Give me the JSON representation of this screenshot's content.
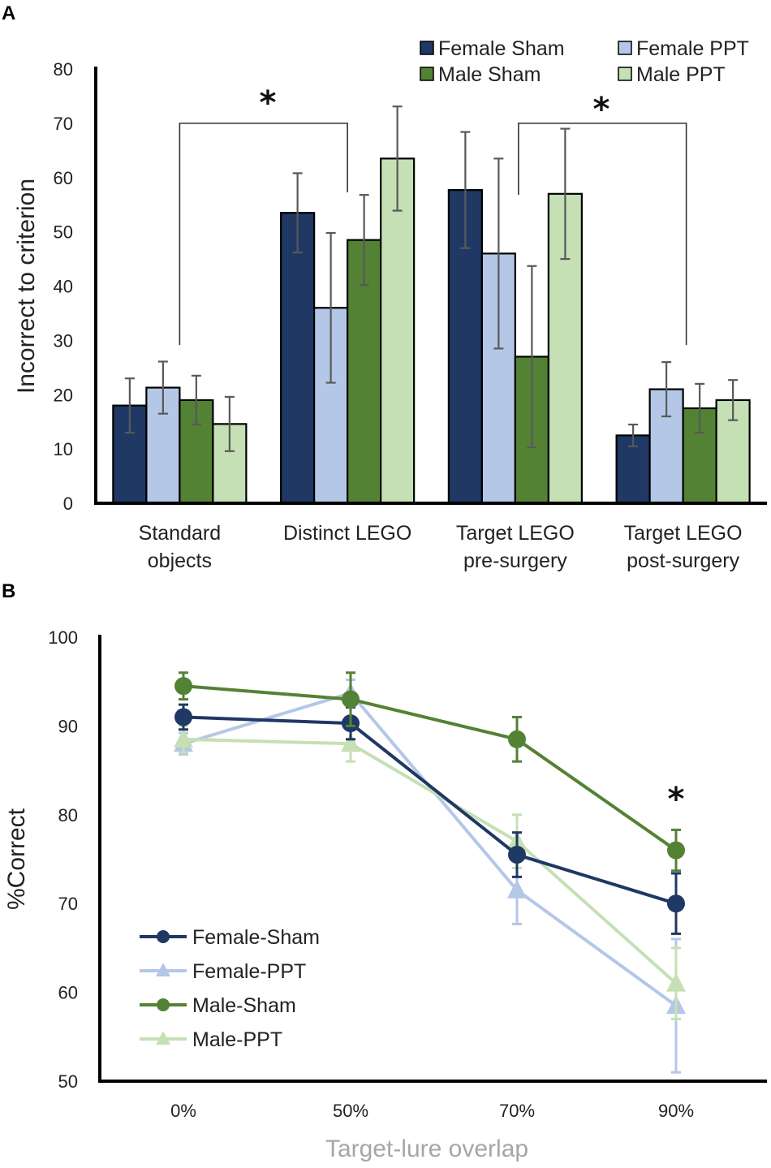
{
  "colors": {
    "female_sham": "#1f3864",
    "female_ppt": "#b4c7e7",
    "male_sham": "#548235",
    "male_ppt": "#c5e0b4",
    "error_bar": "#595959",
    "axis": "#000000",
    "xlabel_b": "#a6a6a6"
  },
  "chart_data": [
    {
      "panel": "A",
      "type": "bar",
      "ylabel": "Incorrect to criterion",
      "xlabel": "",
      "ylim": [
        0,
        80
      ],
      "yticks": [
        "0",
        "10",
        "20",
        "30",
        "40",
        "50",
        "60",
        "70",
        "80"
      ],
      "categories": [
        [
          "Standard",
          "objects"
        ],
        [
          "Distinct LEGO"
        ],
        [
          "Target LEGO",
          "pre-surgery"
        ],
        [
          "Target LEGO",
          "post-surgery"
        ]
      ],
      "series": [
        {
          "name": "Female Sham",
          "color_key": "female_sham",
          "values": [
            18,
            53.5,
            57.7,
            12.5
          ],
          "errors": [
            5,
            7.3,
            10.7,
            2
          ]
        },
        {
          "name": "Female PPT",
          "color_key": "female_ppt",
          "values": [
            21.3,
            36,
            46,
            21
          ],
          "errors": [
            4.8,
            13.8,
            17.5,
            5
          ]
        },
        {
          "name": "Male Sham",
          "color_key": "male_sham",
          "values": [
            19,
            48.5,
            27,
            17.5
          ],
          "errors": [
            4.5,
            8.3,
            16.7,
            4.5
          ]
        },
        {
          "name": "Male PPT",
          "color_key": "male_ppt",
          "values": [
            14.6,
            63.5,
            57,
            19
          ],
          "errors": [
            5,
            9.6,
            12,
            3.7
          ]
        }
      ],
      "significance": [
        {
          "label": "*",
          "from_category": 0,
          "to_category": 1,
          "bracket_y": 70
        },
        {
          "label": "*",
          "from_category": 2,
          "to_category": 3,
          "bracket_y": 70
        }
      ],
      "legend_position": "top-right"
    },
    {
      "panel": "B",
      "type": "line",
      "ylabel": "%Correct",
      "xlabel": "Target-lure  overlap",
      "ylim": [
        50,
        100
      ],
      "yticks": [
        "50",
        "60",
        "70",
        "80",
        "90",
        "100"
      ],
      "categories": [
        "0%",
        "50%",
        "70%",
        "90%"
      ],
      "series": [
        {
          "name": "Female-Sham",
          "marker": "circle",
          "color_key": "female_sham",
          "values": [
            91,
            90.3,
            75.5,
            70
          ],
          "errors": [
            1.4,
            1.8,
            2.5,
            3.4
          ]
        },
        {
          "name": "Female-PPT",
          "marker": "triangle",
          "color_key": "female_ppt",
          "values": [
            88,
            93.7,
            71.5,
            58.5
          ],
          "errors": [
            1.2,
            1.5,
            3.8,
            7.5
          ]
        },
        {
          "name": "Male-Sham",
          "marker": "circle",
          "color_key": "male_sham",
          "values": [
            94.5,
            93,
            88.5,
            76
          ],
          "errors": [
            1.5,
            3,
            2.5,
            2.3
          ]
        },
        {
          "name": "Male-PPT",
          "marker": "triangle",
          "color_key": "male_ppt",
          "values": [
            88.5,
            88,
            77,
            61
          ],
          "errors": [
            1.5,
            2,
            3,
            4
          ]
        }
      ],
      "significance": [
        {
          "label": "*",
          "category": 3,
          "y": 80
        }
      ],
      "legend_position": "bottom-left"
    }
  ],
  "labels": {
    "panel_a": "A",
    "panel_b": "B"
  }
}
